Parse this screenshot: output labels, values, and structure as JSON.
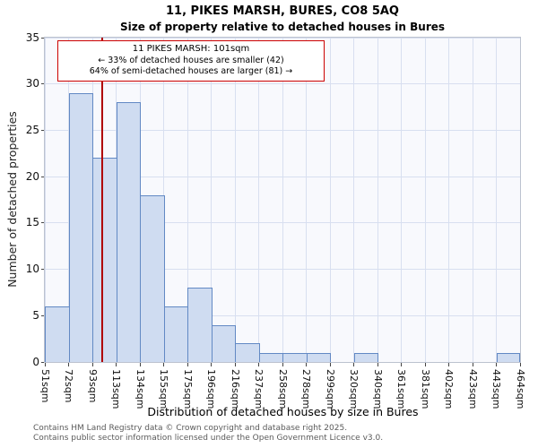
{
  "annotation": {
    "line1": "11 PIKES MARSH: 101sqm",
    "line2": "← 33% of detached houses are smaller (42)",
    "line3": "64% of semi-detached houses are larger (81) →"
  },
  "footer": {
    "line1": "Contains HM Land Registry data © Crown copyright and database right 2025.",
    "line2": "Contains public sector information licensed under the Open Government Licence v3.0."
  },
  "chart_data": {
    "type": "bar",
    "title": "11, PIKES MARSH, BURES, CO8 5AQ",
    "subtitle": "Size of property relative to detached houses in Bures",
    "xlabel": "Distribution of detached houses by size in Bures",
    "ylabel": "Number of detached properties",
    "ylim": [
      0,
      35
    ],
    "yticks": [
      0,
      5,
      10,
      15,
      20,
      25,
      30,
      35
    ],
    "grid": true,
    "legend": "none",
    "bin_edges_sqm": [
      51,
      72,
      93,
      113,
      134,
      155,
      175,
      196,
      216,
      237,
      258,
      278,
      299,
      320,
      340,
      361,
      381,
      402,
      423,
      443,
      464
    ],
    "tick_labels": [
      "51sqm",
      "72sqm",
      "93sqm",
      "113sqm",
      "134sqm",
      "155sqm",
      "175sqm",
      "196sqm",
      "216sqm",
      "237sqm",
      "258sqm",
      "278sqm",
      "299sqm",
      "320sqm",
      "340sqm",
      "361sqm",
      "381sqm",
      "402sqm",
      "423sqm",
      "443sqm",
      "464sqm"
    ],
    "values": [
      6,
      29,
      22,
      28,
      18,
      6,
      8,
      4,
      2,
      1,
      1,
      1,
      0,
      1,
      0,
      0,
      0,
      0,
      0,
      1
    ],
    "marker_value_sqm": 101,
    "marker_property": "11 PIKES MARSH",
    "smaller_pct": 33,
    "smaller_count": 42,
    "larger_pct": 64,
    "larger_count": 81,
    "colors": {
      "bar_fill": "#cfdcf1",
      "bar_edge": "#6289c4",
      "marker_line": "#b00000",
      "annotation_border": "#cc0000",
      "grid": "#d8dff0",
      "plot_bg": "#f8f9fd"
    }
  }
}
